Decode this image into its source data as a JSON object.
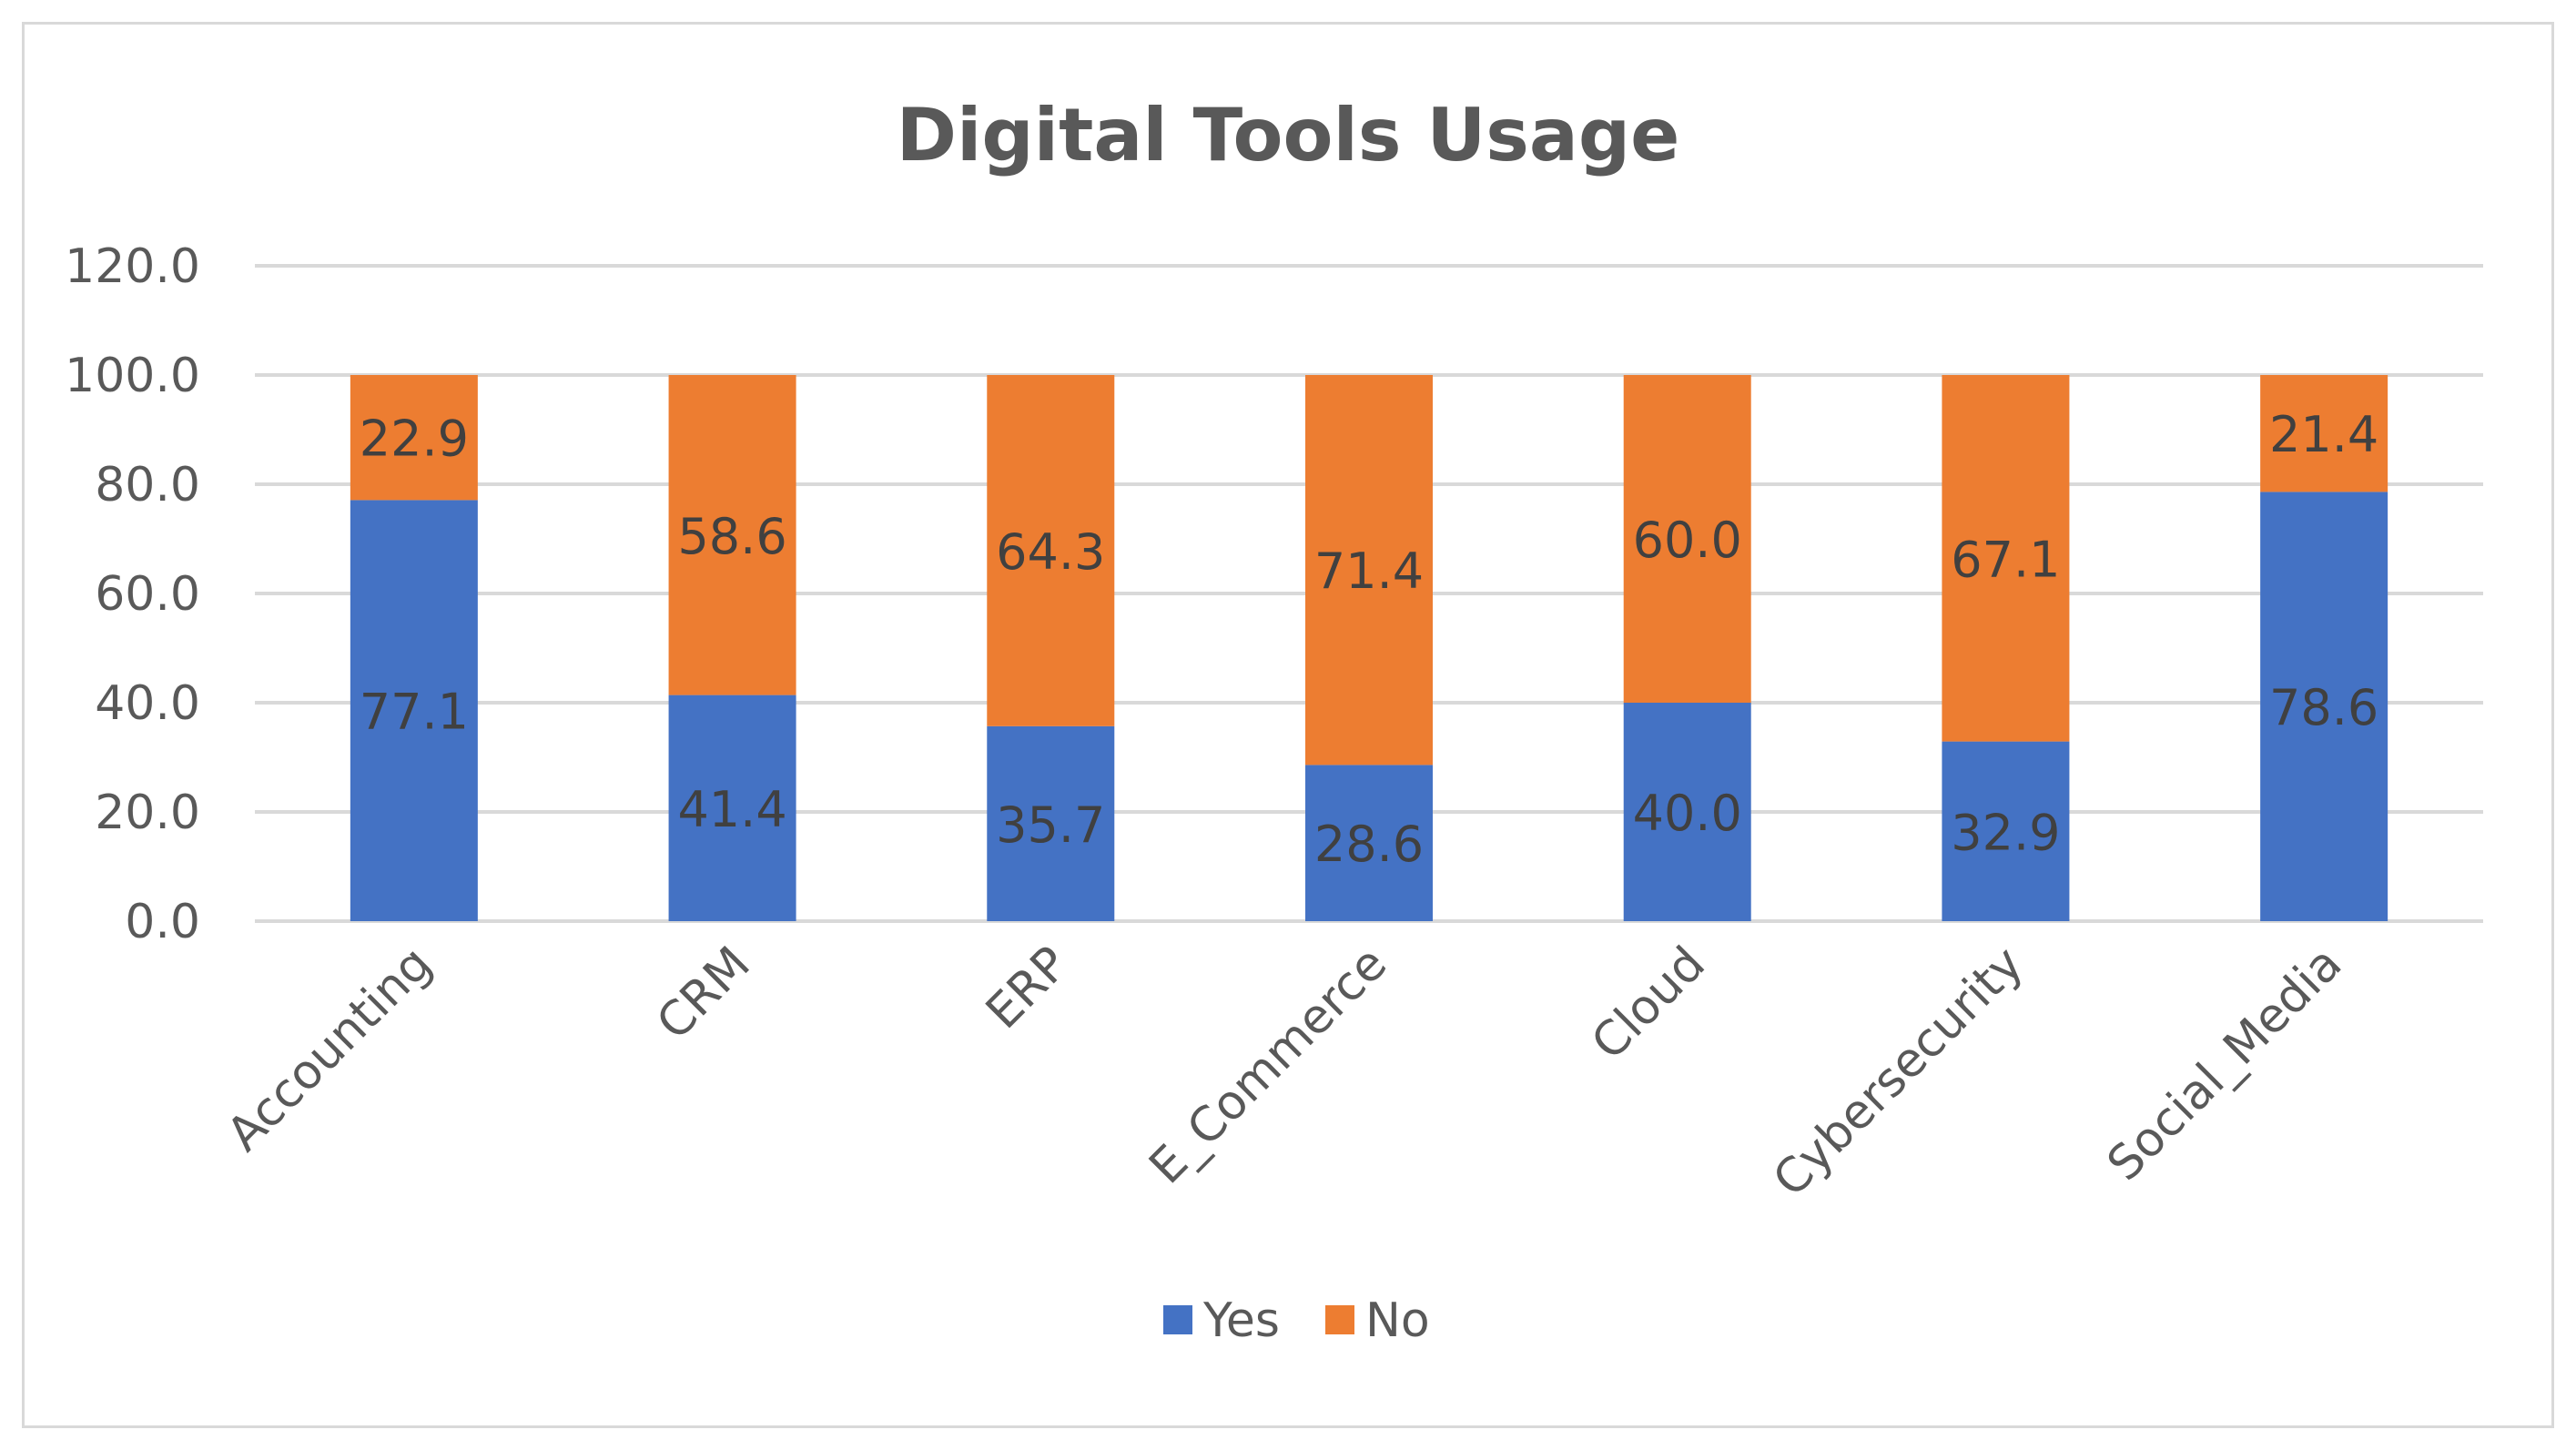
{
  "chart_data": {
    "type": "bar",
    "stacked": true,
    "title": "Digital Tools Usage",
    "categories": [
      "Accounting",
      "CRM",
      "ERP",
      "E_Commerce",
      "Cloud",
      "Cybersecurity",
      "Social_Media"
    ],
    "series": [
      {
        "name": "Yes",
        "color": "#4472c4",
        "values": [
          77.1,
          41.4,
          35.7,
          28.6,
          40.0,
          32.9,
          78.6
        ]
      },
      {
        "name": "No",
        "color": "#ed7d31",
        "values": [
          22.9,
          58.6,
          64.3,
          71.4,
          60.0,
          67.1,
          21.4
        ]
      }
    ],
    "ylim": [
      0,
      120
    ],
    "yticks": [
      "0.0",
      "20.0",
      "40.0",
      "60.0",
      "80.0",
      "100.0",
      "120.0"
    ],
    "grid": true,
    "legend_position": "bottom",
    "xlabel": "",
    "ylabel": ""
  }
}
